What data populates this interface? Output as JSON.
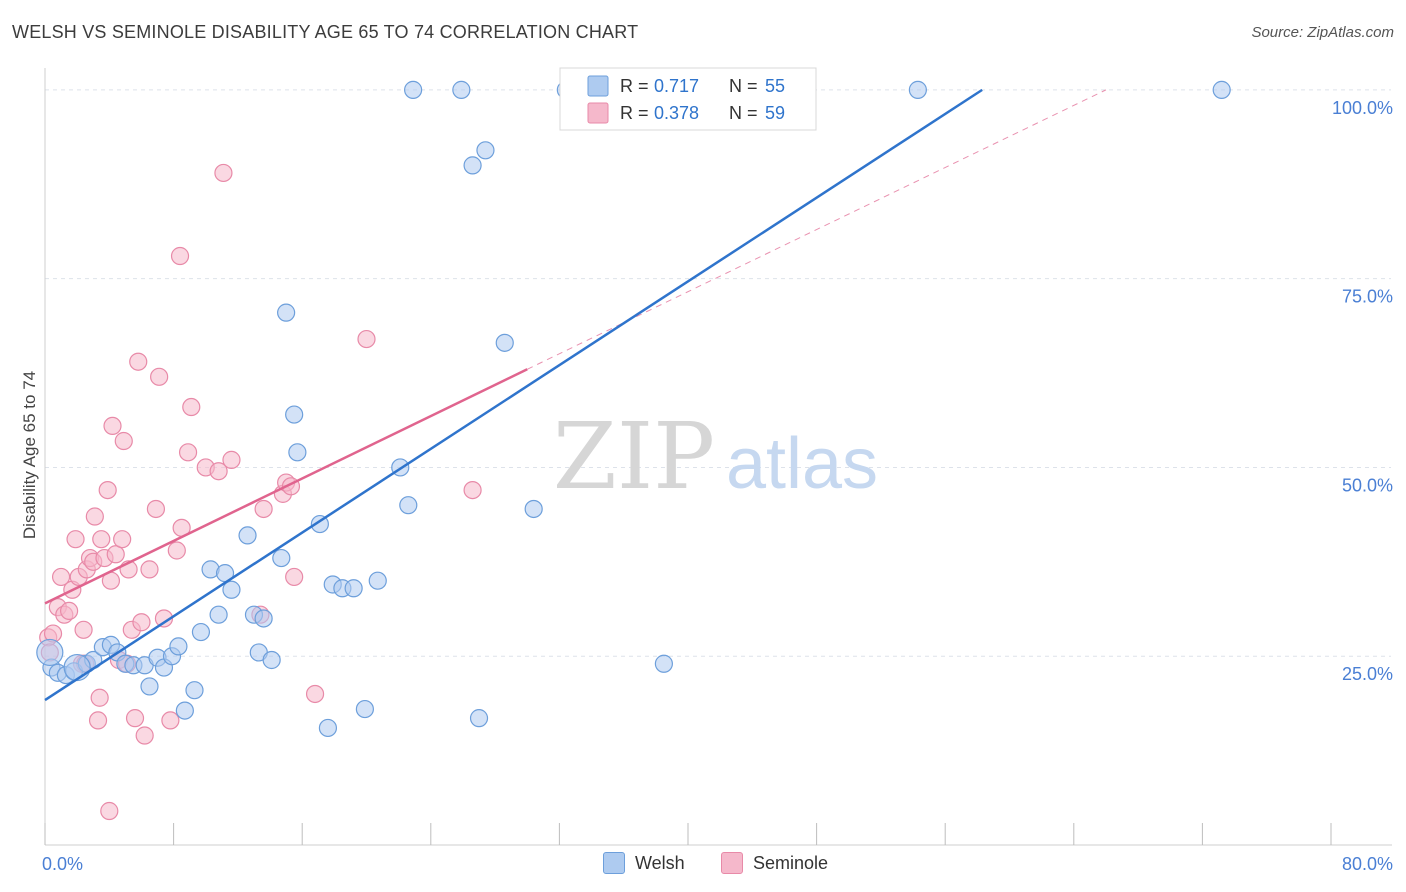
{
  "header": {
    "title": "WELSH VS SEMINOLE DISABILITY AGE 65 TO 74 CORRELATION CHART",
    "source": "Source: ZipAtlas.com"
  },
  "watermark": {
    "zip": "ZIP",
    "atlas": "atlas"
  },
  "colors": {
    "welsh_fill": "#aecbf0",
    "welsh_stroke": "#6d9fdb",
    "welsh_line": "#2f74cc",
    "seminole_fill": "#f5b8cb",
    "seminole_stroke": "#e88aa8",
    "seminole_line": "#e0648e",
    "tick_label": "#4a7fd4",
    "grid": "#dde2ea"
  },
  "legend_top": {
    "welsh": {
      "r_label": "R = ",
      "r_value": "0.717",
      "n_label": "N = ",
      "n_value": "55"
    },
    "seminole": {
      "r_label": "R = ",
      "r_value": "0.378",
      "n_label": "N = ",
      "n_value": "59"
    }
  },
  "legend_bottom": {
    "welsh": "Welsh",
    "seminole": "Seminole"
  },
  "chart_data": {
    "type": "scatter",
    "title": "WELSH VS SEMINOLE DISABILITY AGE 65 TO 74 CORRELATION CHART",
    "xlabel": "",
    "ylabel": "Disability Age 65 to 74",
    "xlim": [
      0,
      80
    ],
    "ylim": [
      0,
      102.5
    ],
    "x_tick_labels": [
      "0.0%",
      "80.0%"
    ],
    "y_ticks": [
      25,
      50,
      75,
      100
    ],
    "y_tick_labels": [
      "25.0%",
      "50.0%",
      "75.0%",
      "100.0%"
    ],
    "grid": true,
    "series": [
      {
        "name": "Welsh",
        "R": 0.717,
        "N": 55,
        "trend": {
          "x": [
            0,
            58.3
          ],
          "y": [
            19.2,
            100
          ]
        },
        "points": [
          [
            0.4,
            23.5
          ],
          [
            0.8,
            22.8
          ],
          [
            1.3,
            22.5
          ],
          [
            1.8,
            23.0
          ],
          [
            2.6,
            24.0
          ],
          [
            3.0,
            24.5
          ],
          [
            3.6,
            26.2
          ],
          [
            4.1,
            26.5
          ],
          [
            4.5,
            25.5
          ],
          [
            5.0,
            24.0
          ],
          [
            5.5,
            23.8
          ],
          [
            6.2,
            23.8
          ],
          [
            6.5,
            21.0
          ],
          [
            7.0,
            24.8
          ],
          [
            7.4,
            23.5
          ],
          [
            7.9,
            25.0
          ],
          [
            8.3,
            26.3
          ],
          [
            8.7,
            17.8
          ],
          [
            9.3,
            20.5
          ],
          [
            9.7,
            28.2
          ],
          [
            10.3,
            36.5
          ],
          [
            10.8,
            30.5
          ],
          [
            11.2,
            36.0
          ],
          [
            11.6,
            33.8
          ],
          [
            12.6,
            41.0
          ],
          [
            13.0,
            30.5
          ],
          [
            13.3,
            25.5
          ],
          [
            13.6,
            30.0
          ],
          [
            14.1,
            24.5
          ],
          [
            14.7,
            38.0
          ],
          [
            15.0,
            70.5
          ],
          [
            15.5,
            57.0
          ],
          [
            15.7,
            52.0
          ],
          [
            17.1,
            42.5
          ],
          [
            17.9,
            34.5
          ],
          [
            18.5,
            34.0
          ],
          [
            19.2,
            34.0
          ],
          [
            19.9,
            18.0
          ],
          [
            20.7,
            35.0
          ],
          [
            22.1,
            50.0
          ],
          [
            22.6,
            45.0
          ],
          [
            22.9,
            100.0
          ],
          [
            25.9,
            100.0
          ],
          [
            26.6,
            90.0
          ],
          [
            27.0,
            16.8
          ],
          [
            27.4,
            92.0
          ],
          [
            28.6,
            66.5
          ],
          [
            30.4,
            44.5
          ],
          [
            32.4,
            100.0
          ],
          [
            38.5,
            24.0
          ],
          [
            54.3,
            100.0
          ],
          [
            73.2,
            100.0
          ],
          [
            17.6,
            15.5
          ],
          [
            0.3,
            25.5
          ],
          [
            2.0,
            23.5
          ]
        ]
      },
      {
        "name": "Seminole",
        "R": 0.378,
        "N": 59,
        "trend": {
          "x": [
            0,
            30.0
          ],
          "y": [
            32.0,
            63.0
          ]
        },
        "trend_extension": {
          "x": [
            30.0,
            66.0
          ],
          "y": [
            63.0,
            100.0
          ]
        },
        "points": [
          [
            0.2,
            27.5
          ],
          [
            0.3,
            25.5
          ],
          [
            0.5,
            28.0
          ],
          [
            0.8,
            31.5
          ],
          [
            1.0,
            35.5
          ],
          [
            1.2,
            30.5
          ],
          [
            1.5,
            31.0
          ],
          [
            1.7,
            33.8
          ],
          [
            1.9,
            40.5
          ],
          [
            2.1,
            35.5
          ],
          [
            2.3,
            24.0
          ],
          [
            2.4,
            28.5
          ],
          [
            2.6,
            36.5
          ],
          [
            2.8,
            38.0
          ],
          [
            3.0,
            37.5
          ],
          [
            3.1,
            43.5
          ],
          [
            3.3,
            16.5
          ],
          [
            3.5,
            40.5
          ],
          [
            3.7,
            38.0
          ],
          [
            3.9,
            47.0
          ],
          [
            4.1,
            35.0
          ],
          [
            4.2,
            55.5
          ],
          [
            4.4,
            38.5
          ],
          [
            4.6,
            24.5
          ],
          [
            4.8,
            40.5
          ],
          [
            4.9,
            53.5
          ],
          [
            5.1,
            24.0
          ],
          [
            5.2,
            36.5
          ],
          [
            5.4,
            28.5
          ],
          [
            5.6,
            16.8
          ],
          [
            5.8,
            64.0
          ],
          [
            6.0,
            29.5
          ],
          [
            6.2,
            14.5
          ],
          [
            6.5,
            36.5
          ],
          [
            6.9,
            44.5
          ],
          [
            7.1,
            62.0
          ],
          [
            7.4,
            30.0
          ],
          [
            7.8,
            16.5
          ],
          [
            8.2,
            39.0
          ],
          [
            8.4,
            78.0
          ],
          [
            8.5,
            42.0
          ],
          [
            8.9,
            52.0
          ],
          [
            9.1,
            58.0
          ],
          [
            10.0,
            50.0
          ],
          [
            10.8,
            49.5
          ],
          [
            11.1,
            89.0
          ],
          [
            11.6,
            51.0
          ],
          [
            13.4,
            30.5
          ],
          [
            13.6,
            44.5
          ],
          [
            14.8,
            46.5
          ],
          [
            15.0,
            48.0
          ],
          [
            15.3,
            47.5
          ],
          [
            15.5,
            35.5
          ],
          [
            16.8,
            20.0
          ],
          [
            20.0,
            67.0
          ],
          [
            26.6,
            47.0
          ],
          [
            4.0,
            4.5
          ],
          [
            3.4,
            19.5
          ],
          [
            2.5,
            24.0
          ]
        ]
      }
    ]
  }
}
